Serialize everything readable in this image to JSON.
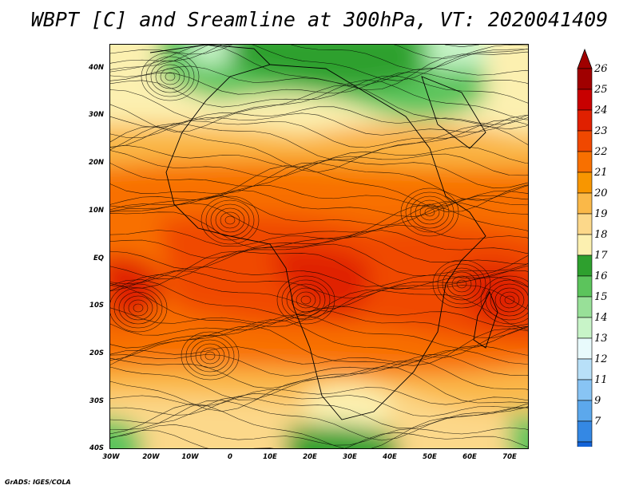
{
  "title": "WBPT [C] and Sreamline at 300hPa, VT: 2020041409",
  "footer": "GrADS: IGES/COLA",
  "y_axis_labels": [
    "40N",
    "30N",
    "20N",
    "10N",
    "EQ",
    "10S",
    "20S",
    "30S",
    "40S"
  ],
  "x_axis_labels": [
    "30W",
    "20W",
    "10W",
    "0",
    "10E",
    "20E",
    "30E",
    "40E",
    "50E",
    "60E",
    "70E"
  ],
  "colorbar": {
    "levels": [
      "26",
      "25",
      "24",
      "23",
      "22",
      "21",
      "20",
      "19",
      "18",
      "17",
      "16",
      "15",
      "14",
      "13",
      "12",
      "11",
      "9",
      "7"
    ],
    "colors": [
      "#a00000",
      "#c80000",
      "#e02000",
      "#f04800",
      "#f87000",
      "#f89600",
      "#fab848",
      "#fcd88a",
      "#fcf0b0",
      "#2ea02e",
      "#5cc45c",
      "#98e098",
      "#c8f4c8",
      "#e8fafc",
      "#b8e0f8",
      "#88c4f4",
      "#5ca8ec",
      "#3488e4",
      "#1464d8"
    ],
    "top_arrow_color": "#a00000",
    "bottom_arrow_color": "#1464d8"
  },
  "map_colors": {
    "green_dark": "#2ea02e",
    "green": "#5cc45c",
    "green_light": "#98e098",
    "pale_blue": "#c8f4c8",
    "yellow_pale": "#fcf0b0",
    "yellow": "#fcd88a",
    "tan": "#fab848",
    "orange": "#f89600",
    "orange_dark": "#f87000",
    "red_orange": "#f04800",
    "red": "#e02000"
  }
}
